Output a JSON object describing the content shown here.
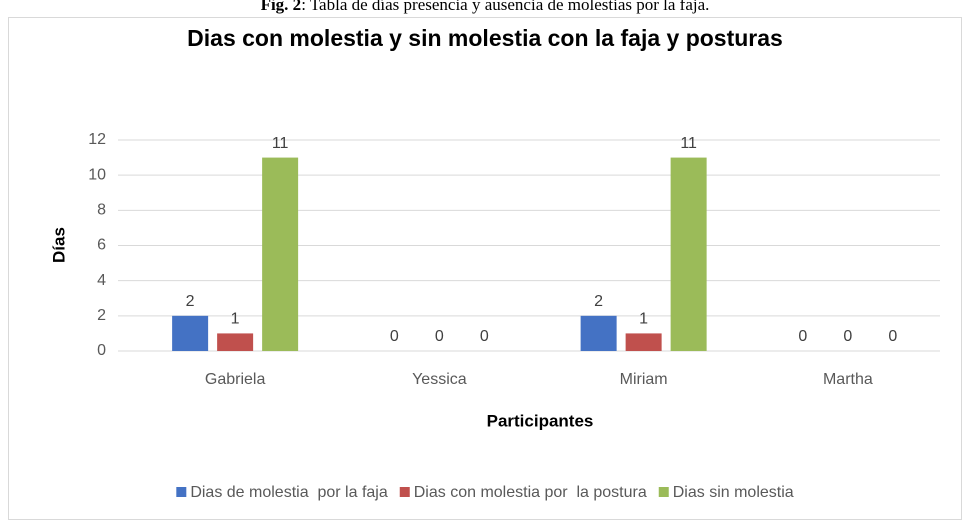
{
  "caption": {
    "label": "Fig. 2",
    "text": ": Tabla de días presencia y ausencia de molestias por la faja."
  },
  "chart_data": {
    "type": "bar",
    "title": "Dias con molestia y sin molestia con la faja y posturas",
    "y_label": "Días",
    "x_label": "Participantes",
    "categories": [
      "Gabriela",
      "Yessica",
      "Miriam",
      "Martha"
    ],
    "series": [
      {
        "name": "Dias de molestia  por la faja",
        "color": "#4472c4",
        "values": [
          2,
          0,
          2,
          0
        ]
      },
      {
        "name": "Dias con molestia por  la postura",
        "color": "#c0504d",
        "values": [
          1,
          0,
          1,
          0
        ]
      },
      {
        "name": "Dias sin molestia",
        "color": "#9bbb59",
        "values": [
          11,
          0,
          11,
          0
        ]
      }
    ],
    "ylim": [
      0,
      12
    ],
    "yticks": [
      0,
      2,
      4,
      6,
      8,
      10,
      12
    ],
    "grid": true,
    "data_labels": true,
    "legend": "bottom"
  }
}
